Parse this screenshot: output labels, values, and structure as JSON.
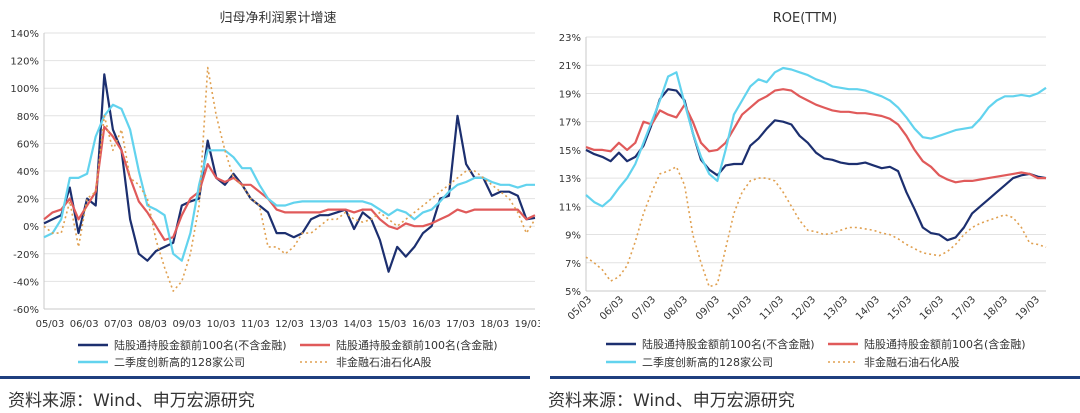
{
  "colors": {
    "navy": "#1c2f6f",
    "red": "#e05a5a",
    "cyan": "#62d3ee",
    "orange": "#e0a050",
    "grid": "#e2e2e2",
    "axis": "#c8c8c8",
    "rule": "#1f3f7f",
    "text": "#333333"
  },
  "left": {
    "source": "资料来源：Wind、申万宏源研究"
  },
  "right": {
    "source": "资料来源：Wind、申万宏源研究"
  },
  "chart_data": [
    {
      "type": "line",
      "title": "归母净利润累计增速",
      "ylim": [
        -60,
        140
      ],
      "yticks": [
        -60,
        -40,
        -20,
        0,
        20,
        40,
        60,
        80,
        100,
        120,
        140
      ],
      "ytick_labels": [
        "-60%",
        "-40%",
        "-20%",
        "0%",
        "20%",
        "40%",
        "60%",
        "80%",
        "100%",
        "120%",
        "140%"
      ],
      "x_labels": [
        "05/03",
        "06/03",
        "07/03",
        "08/03",
        "09/03",
        "10/03",
        "11/03",
        "12/03",
        "13/03",
        "14/03",
        "15/03",
        "16/03",
        "17/03",
        "18/03",
        "19/03"
      ],
      "x_label_rotation": 0,
      "grid": "horizontal",
      "legend": "bottom",
      "series": [
        {
          "name": "陆股通持股金额前100名(不含金融)",
          "color_key": "navy",
          "style": "solid",
          "values": [
            2,
            5,
            8,
            28,
            -5,
            20,
            15,
            110,
            70,
            55,
            5,
            -20,
            -25,
            -18,
            -15,
            -12,
            15,
            18,
            20,
            62,
            35,
            30,
            38,
            30,
            20,
            15,
            10,
            -5,
            -5,
            -8,
            -5,
            5,
            8,
            8,
            10,
            12,
            -2,
            10,
            5,
            -10,
            -33,
            -15,
            -22,
            -15,
            -5,
            0,
            20,
            22,
            80,
            45,
            35,
            35,
            22,
            25,
            25,
            22,
            5,
            6
          ]
        },
        {
          "name": "陆股通持股金额前100名(含金融)",
          "color_key": "red",
          "style": "solid",
          "values": [
            5,
            10,
            12,
            20,
            5,
            15,
            25,
            72,
            65,
            55,
            35,
            18,
            10,
            0,
            -10,
            -8,
            8,
            20,
            25,
            45,
            35,
            32,
            35,
            30,
            30,
            25,
            20,
            12,
            10,
            10,
            10,
            10,
            10,
            12,
            12,
            12,
            10,
            12,
            12,
            5,
            0,
            -2,
            2,
            0,
            0,
            2,
            5,
            8,
            12,
            10,
            12,
            12,
            12,
            12,
            12,
            12,
            5,
            8
          ]
        },
        {
          "name": "二季度创新高的128家公司",
          "color_key": "cyan",
          "style": "solid",
          "values": [
            -8,
            -5,
            5,
            35,
            35,
            38,
            65,
            80,
            88,
            85,
            70,
            40,
            15,
            12,
            8,
            -20,
            -25,
            -5,
            30,
            55,
            55,
            55,
            50,
            42,
            42,
            30,
            20,
            15,
            15,
            17,
            18,
            18,
            18,
            18,
            18,
            18,
            18,
            18,
            16,
            12,
            8,
            12,
            10,
            5,
            10,
            12,
            18,
            25,
            30,
            32,
            35,
            35,
            32,
            30,
            30,
            28,
            30,
            30
          ]
        },
        {
          "name": "非金融石油石化A股",
          "color_key": "orange",
          "style": "dotted",
          "values": [
            0,
            -5,
            -5,
            18,
            -15,
            20,
            25,
            80,
            55,
            70,
            35,
            30,
            20,
            -10,
            -30,
            -47,
            -40,
            -20,
            15,
            115,
            80,
            55,
            35,
            30,
            20,
            15,
            -15,
            -15,
            -20,
            -15,
            -5,
            -5,
            0,
            5,
            5,
            10,
            5,
            3,
            5,
            10,
            5,
            0,
            5,
            10,
            15,
            20,
            25,
            30,
            35,
            40,
            40,
            35,
            30,
            25,
            20,
            10,
            -5,
            5
          ]
        }
      ]
    },
    {
      "type": "line",
      "title": "ROE(TTM)",
      "ylim": [
        5,
        23
      ],
      "yticks": [
        5,
        7,
        9,
        11,
        13,
        15,
        17,
        19,
        21,
        23
      ],
      "ytick_labels": [
        "5%",
        "7%",
        "9%",
        "11%",
        "13%",
        "15%",
        "17%",
        "19%",
        "21%",
        "23%"
      ],
      "x_labels": [
        "05/03",
        "06/03",
        "07/03",
        "08/03",
        "09/03",
        "10/03",
        "11/03",
        "12/03",
        "13/03",
        "14/03",
        "15/03",
        "16/03",
        "17/03",
        "18/03",
        "19/03"
      ],
      "x_label_rotation": -45,
      "grid": "horizontal",
      "legend": "bottom",
      "series": [
        {
          "name": "陆股通持股金额前100名(不含金融)",
          "color_key": "navy",
          "style": "solid",
          "values": [
            15.0,
            14.7,
            14.5,
            14.2,
            14.8,
            14.2,
            14.5,
            15.3,
            16.8,
            18.6,
            19.3,
            19.2,
            18.5,
            16.2,
            14.3,
            13.6,
            13.2,
            13.9,
            14.0,
            14.0,
            15.3,
            15.8,
            16.5,
            17.1,
            17.0,
            16.8,
            16.0,
            15.5,
            14.8,
            14.4,
            14.3,
            14.1,
            14.0,
            14.0,
            14.1,
            13.9,
            13.7,
            13.8,
            13.5,
            12.0,
            10.8,
            9.5,
            9.1,
            9.0,
            8.6,
            8.8,
            9.5,
            10.5,
            11.0,
            11.5,
            12.0,
            12.5,
            13.0,
            13.2,
            13.3,
            13.1,
            13.0
          ]
        },
        {
          "name": "陆股通持股金额前100名(含金融)",
          "color_key": "red",
          "style": "solid",
          "values": [
            15.2,
            15.0,
            15.0,
            14.9,
            15.5,
            15.0,
            15.5,
            17.0,
            16.8,
            17.8,
            17.5,
            17.3,
            18.2,
            17.0,
            15.5,
            14.9,
            15.0,
            15.5,
            16.5,
            17.5,
            18.0,
            18.5,
            18.8,
            19.2,
            19.3,
            19.2,
            18.8,
            18.5,
            18.2,
            18.0,
            17.8,
            17.7,
            17.7,
            17.6,
            17.6,
            17.5,
            17.4,
            17.2,
            16.8,
            16.0,
            15.0,
            14.2,
            13.8,
            13.2,
            12.9,
            12.7,
            12.8,
            12.8,
            12.9,
            13.0,
            13.1,
            13.2,
            13.3,
            13.4,
            13.3,
            13.0,
            13.0
          ]
        },
        {
          "name": "二季度创新高的128家公司",
          "color_key": "cyan",
          "style": "solid",
          "values": [
            11.8,
            11.3,
            11.0,
            11.5,
            12.3,
            13.0,
            14.0,
            15.5,
            17.0,
            18.5,
            20.2,
            20.5,
            18.3,
            16.2,
            14.5,
            13.3,
            12.8,
            15.0,
            17.5,
            18.5,
            19.5,
            20.0,
            19.8,
            20.5,
            20.8,
            20.7,
            20.5,
            20.3,
            20.0,
            19.8,
            19.5,
            19.4,
            19.3,
            19.3,
            19.2,
            19.0,
            18.8,
            18.5,
            18.0,
            17.3,
            16.5,
            15.9,
            15.8,
            16.0,
            16.2,
            16.4,
            16.5,
            16.6,
            17.2,
            18.0,
            18.5,
            18.8,
            18.8,
            18.9,
            18.8,
            19.0,
            19.4
          ]
        },
        {
          "name": "非金融石油石化A股",
          "color_key": "orange",
          "style": "dotted",
          "values": [
            7.4,
            7.0,
            6.5,
            5.7,
            6.0,
            6.8,
            8.5,
            10.5,
            12.0,
            13.3,
            13.5,
            13.8,
            12.5,
            9.0,
            7.0,
            5.3,
            5.5,
            8.0,
            10.5,
            12.0,
            12.8,
            13.0,
            13.0,
            12.8,
            12.0,
            11.0,
            10.0,
            9.3,
            9.2,
            9.0,
            9.1,
            9.3,
            9.5,
            9.5,
            9.4,
            9.3,
            9.1,
            9.0,
            8.7,
            8.3,
            8.0,
            7.7,
            7.6,
            7.5,
            7.8,
            8.3,
            9.0,
            9.5,
            9.8,
            10.0,
            10.2,
            10.4,
            10.2,
            9.5,
            8.4,
            8.3,
            8.1
          ]
        }
      ]
    }
  ]
}
